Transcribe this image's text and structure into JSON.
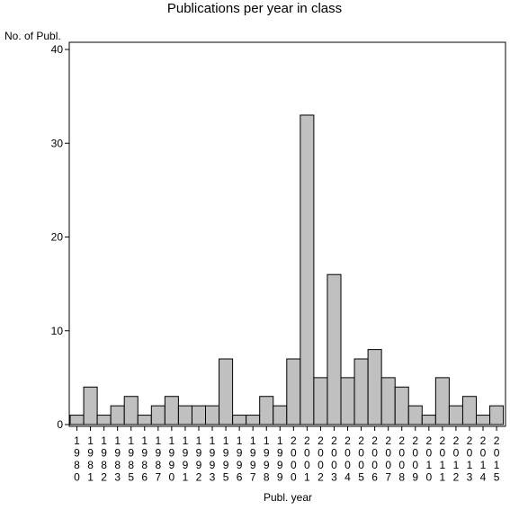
{
  "chart_data": {
    "type": "bar",
    "title": "Publications per year in class",
    "ylabel": "No. of Publ.",
    "xlabel": "Publ. year",
    "ylim": [
      0,
      40
    ],
    "yticks": [
      0,
      10,
      20,
      30,
      40
    ],
    "categories": [
      "1980",
      "1981",
      "1982",
      "1983",
      "1985",
      "1986",
      "1987",
      "1990",
      "1991",
      "1992",
      "1993",
      "1995",
      "1996",
      "1997",
      "1998",
      "1999",
      "2000",
      "2001",
      "2002",
      "2003",
      "2004",
      "2005",
      "2006",
      "2007",
      "2008",
      "2009",
      "2010",
      "2011",
      "2012",
      "2013",
      "2014",
      "2015"
    ],
    "values": [
      1,
      4,
      1,
      2,
      3,
      1,
      2,
      3,
      2,
      2,
      2,
      7,
      1,
      1,
      3,
      2,
      7,
      33,
      5,
      16,
      5,
      7,
      8,
      5,
      4,
      2,
      1,
      5,
      2,
      3,
      1,
      2
    ],
    "bar_color": "#c0c0c0",
    "bar_stroke": "#000000",
    "grid": false,
    "legend": "none"
  }
}
